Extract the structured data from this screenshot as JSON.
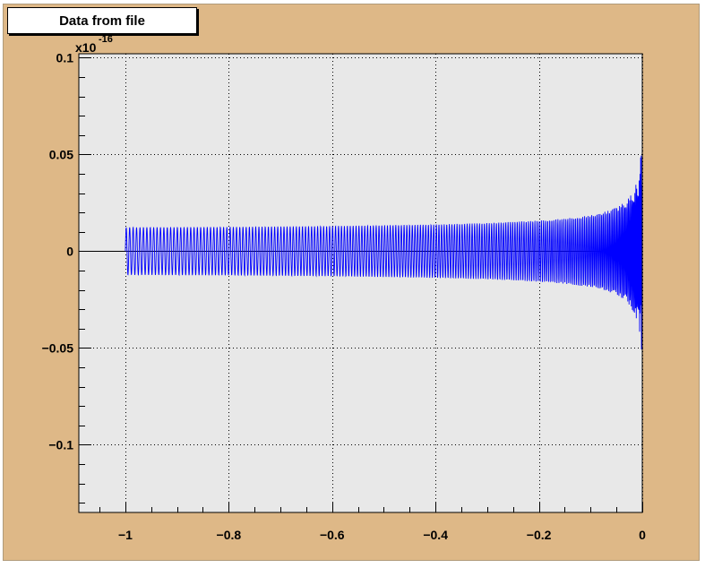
{
  "colors": {
    "canvas": "#deb887",
    "frame": "#e8e8e8",
    "series": "#0000ff",
    "zero_line": "#000000",
    "grid": "#000000"
  },
  "chart_data": {
    "type": "line",
    "title": "Data from file",
    "xlabel": "",
    "ylabel": "",
    "y_exponent_label": "x10",
    "y_exponent_value": "-16",
    "xlim": [
      -1.09,
      0.0
    ],
    "ylim": [
      -0.135,
      0.102
    ],
    "x_ticks": [
      -1,
      -0.8,
      -0.6,
      -0.4,
      -0.2,
      0
    ],
    "x_tick_labels": [
      "−1",
      "−0.8",
      "−0.6",
      "−0.4",
      "−0.2",
      "0"
    ],
    "y_ticks": [
      0.1,
      0.05,
      0,
      -0.05,
      -0.1
    ],
    "y_tick_labels": [
      "0.1",
      "0.05",
      "0",
      "−0.05",
      "−0.1"
    ],
    "grid": true,
    "grid_style": "dotted",
    "series": [
      {
        "style": "oscillation",
        "x_start": -1.0,
        "x_end": 0.0,
        "period_start": 0.0067,
        "envelope": {
          "x": [
            -1.0,
            -0.8,
            -0.6,
            -0.4,
            -0.3,
            -0.2,
            -0.15,
            -0.1,
            -0.07,
            -0.05,
            -0.03,
            -0.015,
            -0.005,
            0.0
          ],
          "amplitude": [
            0.0123,
            0.0125,
            0.013,
            0.0138,
            0.0145,
            0.0158,
            0.0168,
            0.0185,
            0.0205,
            0.0225,
            0.026,
            0.032,
            0.042,
            0.06
          ]
        }
      }
    ]
  }
}
